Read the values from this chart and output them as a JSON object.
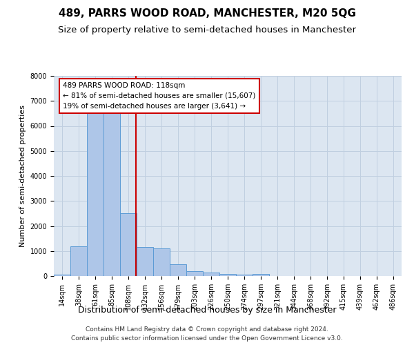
{
  "title": "489, PARRS WOOD ROAD, MANCHESTER, M20 5QG",
  "subtitle": "Size of property relative to semi-detached houses in Manchester",
  "xlabel": "Distribution of semi-detached houses by size in Manchester",
  "ylabel": "Number of semi-detached properties",
  "categories": [
    "14sqm",
    "38sqm",
    "61sqm",
    "85sqm",
    "108sqm",
    "132sqm",
    "156sqm",
    "179sqm",
    "203sqm",
    "226sqm",
    "250sqm",
    "274sqm",
    "297sqm",
    "321sqm",
    "344sqm",
    "368sqm",
    "392sqm",
    "415sqm",
    "439sqm",
    "462sqm",
    "486sqm"
  ],
  "values": [
    55,
    1200,
    6500,
    6650,
    2500,
    1150,
    1100,
    480,
    200,
    130,
    80,
    50,
    80,
    0,
    0,
    0,
    0,
    0,
    0,
    0,
    0
  ],
  "bar_color": "#aec6e8",
  "bar_edge_color": "#5b9bd5",
  "property_line_x": 4.45,
  "annotation_text_line1": "489 PARRS WOOD ROAD: 118sqm",
  "annotation_text_line2": "← 81% of semi-detached houses are smaller (15,607)",
  "annotation_text_line3": "19% of semi-detached houses are larger (3,641) →",
  "vline_color": "#cc0000",
  "annotation_box_edge_color": "#cc0000",
  "ylim_min": 0,
  "ylim_max": 8000,
  "yticks": [
    0,
    1000,
    2000,
    3000,
    4000,
    5000,
    6000,
    7000,
    8000
  ],
  "grid_color": "#c0cfe0",
  "background_color": "#dce6f1",
  "footer_line1": "Contains HM Land Registry data © Crown copyright and database right 2024.",
  "footer_line2": "Contains public sector information licensed under the Open Government Licence v3.0."
}
